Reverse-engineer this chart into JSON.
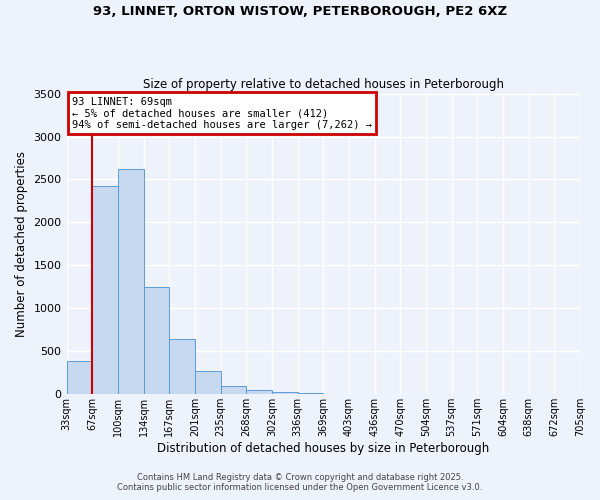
{
  "title1": "93, LINNET, ORTON WISTOW, PETERBOROUGH, PE2 6XZ",
  "title2": "Size of property relative to detached houses in Peterborough",
  "xlabel": "Distribution of detached houses by size in Peterborough",
  "ylabel": "Number of detached properties",
  "bin_labels": [
    "33sqm",
    "67sqm",
    "100sqm",
    "134sqm",
    "167sqm",
    "201sqm",
    "235sqm",
    "268sqm",
    "302sqm",
    "336sqm",
    "369sqm",
    "403sqm",
    "436sqm",
    "470sqm",
    "504sqm",
    "537sqm",
    "571sqm",
    "604sqm",
    "638sqm",
    "672sqm",
    "705sqm"
  ],
  "bar_values": [
    390,
    2420,
    2620,
    1250,
    640,
    270,
    100,
    50,
    25,
    10,
    0,
    0,
    0,
    0,
    0,
    0,
    0,
    0,
    0,
    0
  ],
  "bar_color": "#c6d9f0",
  "bar_edge_color": "#5b9bd5",
  "vline_x": 1.0,
  "vline_color": "#cc0000",
  "annotation_title": "93 LINNET: 69sqm",
  "annotation_line2": "← 5% of detached houses are smaller (412)",
  "annotation_line3": "94% of semi-detached houses are larger (7,262) →",
  "annotation_box_color": "#cc0000",
  "ylim": [
    0,
    3500
  ],
  "yticks": [
    0,
    500,
    1000,
    1500,
    2000,
    2500,
    3000,
    3500
  ],
  "footer1": "Contains HM Land Registry data © Crown copyright and database right 2025.",
  "footer2": "Contains public sector information licensed under the Open Government Licence v3.0.",
  "bg_color": "#eef2fb",
  "grid_color": "#ffffff"
}
